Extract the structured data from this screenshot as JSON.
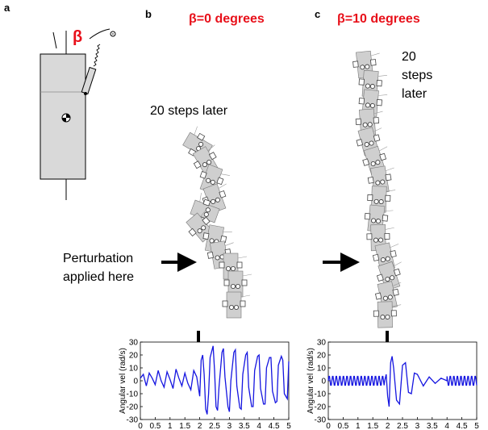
{
  "panels": {
    "a": {
      "letter": "a",
      "beta_symbol": "β"
    },
    "b": {
      "letter": "b",
      "title": "β=0 degrees",
      "steps_label": "20 steps later",
      "perturbation_line1": "Perturbation",
      "perturbation_line2": "applied here"
    },
    "c": {
      "letter": "c",
      "title": "β=10 degrees",
      "steps_line1": "20",
      "steps_line2": "steps",
      "steps_line3": "later"
    }
  },
  "colors": {
    "title_red": "#e8101a",
    "signal_blue": "#1515e0",
    "robot_gray": "#d2d2d2",
    "ink": "#000000"
  },
  "chart_data": [
    {
      "type": "line",
      "panel": "b",
      "ylabel": "Angular vel (rad/s)",
      "xlim": [
        0,
        5
      ],
      "ylim": [
        -30,
        30
      ],
      "xticks": [
        "0",
        "0.5",
        "1",
        "1.5",
        "2",
        "2.5",
        "3",
        "3.5",
        "4",
        "4.5",
        "5"
      ],
      "yticks": [
        "30",
        "20",
        "10",
        "0",
        "-10",
        "-20",
        "-30"
      ],
      "perturbation_time": 2.0,
      "series": [
        {
          "x": [
            0,
            0.1,
            0.2,
            0.3,
            0.4,
            0.5,
            0.6,
            0.7,
            0.8,
            0.9,
            1.0,
            1.1,
            1.2,
            1.3,
            1.4,
            1.5,
            1.6,
            1.7,
            1.8,
            1.9,
            2.0,
            2.05,
            2.1,
            2.15,
            2.2,
            2.25,
            2.3,
            2.35,
            2.45,
            2.5,
            2.55,
            2.6,
            2.65,
            2.75,
            2.8,
            2.85,
            2.95,
            3.0,
            3.05,
            3.15,
            3.2,
            3.25,
            3.35,
            3.4,
            3.45,
            3.55,
            3.6,
            3.65,
            3.75,
            3.8,
            3.85,
            3.95,
            4.0,
            4.05,
            4.15,
            4.2,
            4.25,
            4.35,
            4.4,
            4.45,
            4.55,
            4.6,
            4.65,
            4.75,
            4.8,
            4.85,
            4.95,
            5.0
          ],
          "values": [
            2,
            5,
            -4,
            6,
            2,
            -3,
            8,
            0,
            -5,
            7,
            1,
            -6,
            9,
            2,
            -4,
            6,
            -2,
            -7,
            8,
            3,
            -12,
            16,
            20,
            5,
            -22,
            -26,
            -10,
            18,
            27,
            8,
            -20,
            -23,
            -5,
            22,
            25,
            3,
            -20,
            -24,
            0,
            22,
            24,
            -4,
            -21,
            -22,
            5,
            20,
            22,
            -5,
            -20,
            -20,
            8,
            19,
            20,
            -6,
            -18,
            -18,
            10,
            18,
            18,
            -8,
            -17,
            -16,
            12,
            19,
            16,
            -10,
            -14,
            15
          ]
        }
      ]
    },
    {
      "type": "line",
      "panel": "c",
      "ylabel": "Angular vel (rad/s)",
      "xlim": [
        0,
        5
      ],
      "ylim": [
        -30,
        30
      ],
      "xticks": [
        "0",
        "0.5",
        "1",
        "1.5",
        "2",
        "2.5",
        "3",
        "3.5",
        "4",
        "4.5",
        "5"
      ],
      "yticks": [
        "30",
        "20",
        "10",
        "0",
        "-10",
        "-20",
        "-30"
      ],
      "perturbation_time": 2.0,
      "series": [
        {
          "x": [
            0,
            1.9,
            1.95,
            2.0,
            2.05,
            2.1,
            2.15,
            2.2,
            2.3,
            2.4,
            2.5,
            2.6,
            2.7,
            2.8,
            2.9,
            3.0,
            3.2,
            3.4,
            3.6,
            3.8,
            4.0,
            5.0
          ],
          "values": [
            0,
            0,
            5,
            -12,
            -20,
            14,
            19,
            10,
            -15,
            -18,
            12,
            14,
            -9,
            -10,
            6,
            5,
            -4,
            3,
            -2,
            2,
            0,
            0
          ],
          "steady_amplitude": 4,
          "steady_period": 0.12
        }
      ]
    }
  ]
}
